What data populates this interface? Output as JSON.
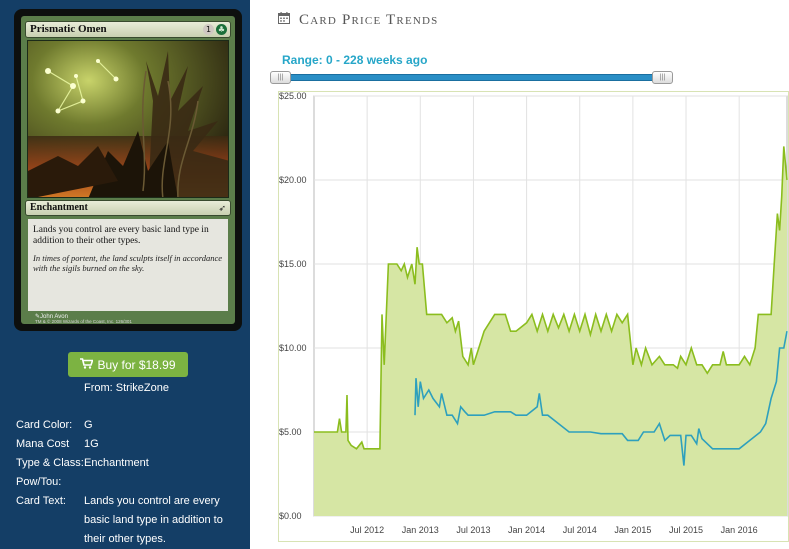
{
  "card": {
    "name": "Prismatic Omen",
    "mana_symbols": [
      {
        "symbol": "1",
        "kind": "generic"
      },
      {
        "symbol": "G",
        "kind": "green"
      }
    ],
    "type_line": "Enchantment",
    "rules_text": "Lands you control are every basic land type in addition to their other types.",
    "flavor_text": "In times of portent, the land sculpts itself in accordance with the sigils burned on the sky.",
    "artist": "John Avon",
    "copyright": "TM & © 2008 Wizards of the Coast, Inc. 126/301"
  },
  "buy": {
    "label": "Buy for $18.99",
    "from": "From: StrikeZone",
    "icon": "shopping-cart-icon"
  },
  "info": {
    "color_label": "Card Color:",
    "color_value": "G",
    "mana_label": "Mana Cost",
    "mana_value": "1G",
    "type_label": "Type & Class:",
    "type_value": "Enchantment",
    "pt_label": "Pow/Tou:",
    "pt_value": "",
    "text_label": "Card Text:",
    "text_value": "Lands you control are every basic land type in addition to their other types."
  },
  "section": {
    "title": "Card Price Trends",
    "icon": "calendar-icon"
  },
  "range": {
    "label": "Range: 0 - 228 weeks ago",
    "min_weeks": 0,
    "max_weeks": 228
  },
  "colors": {
    "panel_bg": "#143e66",
    "green_line": "#8bbd1e",
    "green_fill": "#d6e6a4",
    "blue_line": "#2ea0bd",
    "button": "#7cb342",
    "accent": "#26a6c8"
  },
  "chart_data": {
    "type": "line",
    "y_tick_labels": [
      "$0.00",
      "$5.00",
      "$10.00",
      "$15.00",
      "$20.00",
      "$25.00"
    ],
    "x_tick_labels": [
      "Jul 2012",
      "Jan 2013",
      "Jul 2013",
      "Jan 2014",
      "Jul 2014",
      "Jan 2015",
      "Jul 2015",
      "Jan 2016"
    ],
    "x_tick_values": [
      2012.5,
      2013.0,
      2013.5,
      2014.0,
      2014.5,
      2015.0,
      2015.5,
      2016.0
    ],
    "ylim": [
      0,
      25
    ],
    "xlim": [
      2012.0,
      2016.45
    ],
    "grid": true,
    "series": [
      {
        "points": [
          [
            2012.0,
            5.0
          ],
          [
            2012.22,
            5.0
          ],
          [
            2012.24,
            5.8
          ],
          [
            2012.26,
            5.0
          ],
          [
            2012.3,
            5.0
          ],
          [
            2012.31,
            7.2
          ],
          [
            2012.32,
            4.5
          ],
          [
            2012.35,
            4.2
          ],
          [
            2012.4,
            4.0
          ],
          [
            2012.45,
            4.4
          ],
          [
            2012.47,
            4.0
          ],
          [
            2012.55,
            4.0
          ],
          [
            2012.62,
            4.0
          ],
          [
            2012.64,
            12.0
          ],
          [
            2012.66,
            9.0
          ],
          [
            2012.7,
            15.0
          ],
          [
            2012.78,
            15.0
          ],
          [
            2012.82,
            14.6
          ],
          [
            2012.85,
            15.0
          ],
          [
            2012.88,
            14.2
          ],
          [
            2012.92,
            15.0
          ],
          [
            2012.95,
            13.8
          ],
          [
            2012.97,
            16.0
          ],
          [
            2012.99,
            15.0
          ],
          [
            2013.02,
            15.0
          ],
          [
            2013.06,
            12.0
          ],
          [
            2013.2,
            12.0
          ],
          [
            2013.25,
            11.5
          ],
          [
            2013.3,
            11.8
          ],
          [
            2013.33,
            11.0
          ],
          [
            2013.36,
            11.6
          ],
          [
            2013.4,
            9.5
          ],
          [
            2013.45,
            9.0
          ],
          [
            2013.48,
            10.0
          ],
          [
            2013.5,
            9.0
          ],
          [
            2013.55,
            10.0
          ],
          [
            2013.6,
            11.0
          ],
          [
            2013.65,
            11.5
          ],
          [
            2013.7,
            12.0
          ],
          [
            2013.8,
            12.0
          ],
          [
            2013.85,
            11.0
          ],
          [
            2013.9,
            11.0
          ],
          [
            2014.0,
            11.5
          ],
          [
            2014.05,
            12.0
          ],
          [
            2014.1,
            11.0
          ],
          [
            2014.15,
            12.0
          ],
          [
            2014.2,
            11.0
          ],
          [
            2014.25,
            12.0
          ],
          [
            2014.3,
            11.2
          ],
          [
            2014.35,
            12.0
          ],
          [
            2014.4,
            11.0
          ],
          [
            2014.45,
            12.0
          ],
          [
            2014.5,
            11.0
          ],
          [
            2014.55,
            12.0
          ],
          [
            2014.6,
            10.8
          ],
          [
            2014.65,
            12.0
          ],
          [
            2014.7,
            11.0
          ],
          [
            2014.75,
            12.0
          ],
          [
            2014.8,
            11.0
          ],
          [
            2014.85,
            12.0
          ],
          [
            2014.9,
            11.5
          ],
          [
            2014.95,
            12.0
          ],
          [
            2015.0,
            9.0
          ],
          [
            2015.03,
            10.0
          ],
          [
            2015.08,
            9.0
          ],
          [
            2015.12,
            10.0
          ],
          [
            2015.18,
            9.0
          ],
          [
            2015.25,
            9.5
          ],
          [
            2015.3,
            9.0
          ],
          [
            2015.38,
            9.0
          ],
          [
            2015.42,
            8.8
          ],
          [
            2015.45,
            9.5
          ],
          [
            2015.5,
            9.0
          ],
          [
            2015.55,
            10.0
          ],
          [
            2015.6,
            9.0
          ],
          [
            2015.65,
            9.0
          ],
          [
            2015.7,
            8.5
          ],
          [
            2015.75,
            9.0
          ],
          [
            2015.82,
            9.0
          ],
          [
            2015.85,
            9.8
          ],
          [
            2015.88,
            9.0
          ],
          [
            2015.95,
            9.0
          ],
          [
            2016.0,
            9.0
          ],
          [
            2016.05,
            9.5
          ],
          [
            2016.1,
            9.0
          ],
          [
            2016.15,
            10.0
          ],
          [
            2016.18,
            12.0
          ],
          [
            2016.3,
            12.0
          ],
          [
            2016.33,
            15.0
          ],
          [
            2016.36,
            18.0
          ],
          [
            2016.38,
            17.0
          ],
          [
            2016.4,
            19.0
          ],
          [
            2016.42,
            22.0
          ],
          [
            2016.45,
            20.0
          ]
        ]
      },
      {
        "points": [
          [
            2012.95,
            6.0
          ],
          [
            2012.96,
            8.2
          ],
          [
            2012.98,
            6.5
          ],
          [
            2013.0,
            8.0
          ],
          [
            2013.03,
            7.0
          ],
          [
            2013.08,
            7.5
          ],
          [
            2013.12,
            7.0
          ],
          [
            2013.18,
            6.5
          ],
          [
            2013.2,
            7.3
          ],
          [
            2013.25,
            6.0
          ],
          [
            2013.3,
            6.0
          ],
          [
            2013.35,
            5.5
          ],
          [
            2013.38,
            6.5
          ],
          [
            2013.42,
            6.2
          ],
          [
            2013.45,
            6.0
          ],
          [
            2013.6,
            6.0
          ],
          [
            2013.7,
            6.2
          ],
          [
            2013.85,
            6.2
          ],
          [
            2013.9,
            6.0
          ],
          [
            2014.0,
            6.0
          ],
          [
            2014.1,
            6.5
          ],
          [
            2014.12,
            7.3
          ],
          [
            2014.15,
            6.0
          ],
          [
            2014.2,
            6.0
          ],
          [
            2014.3,
            5.5
          ],
          [
            2014.4,
            5.0
          ],
          [
            2014.6,
            5.0
          ],
          [
            2014.7,
            4.9
          ],
          [
            2014.9,
            4.9
          ],
          [
            2014.95,
            4.5
          ],
          [
            2015.05,
            4.5
          ],
          [
            2015.1,
            5.0
          ],
          [
            2015.2,
            5.0
          ],
          [
            2015.25,
            5.5
          ],
          [
            2015.3,
            4.5
          ],
          [
            2015.35,
            4.8
          ],
          [
            2015.45,
            4.8
          ],
          [
            2015.48,
            3.0
          ],
          [
            2015.5,
            4.8
          ],
          [
            2015.55,
            4.8
          ],
          [
            2015.6,
            4.3
          ],
          [
            2015.62,
            5.2
          ],
          [
            2015.65,
            4.6
          ],
          [
            2015.75,
            4.0
          ],
          [
            2015.9,
            4.0
          ],
          [
            2016.0,
            4.0
          ],
          [
            2016.1,
            4.5
          ],
          [
            2016.2,
            5.0
          ],
          [
            2016.25,
            5.5
          ],
          [
            2016.3,
            7.0
          ],
          [
            2016.35,
            8.0
          ],
          [
            2016.38,
            10.0
          ],
          [
            2016.42,
            10.0
          ],
          [
            2016.45,
            11.0
          ]
        ]
      }
    ]
  }
}
